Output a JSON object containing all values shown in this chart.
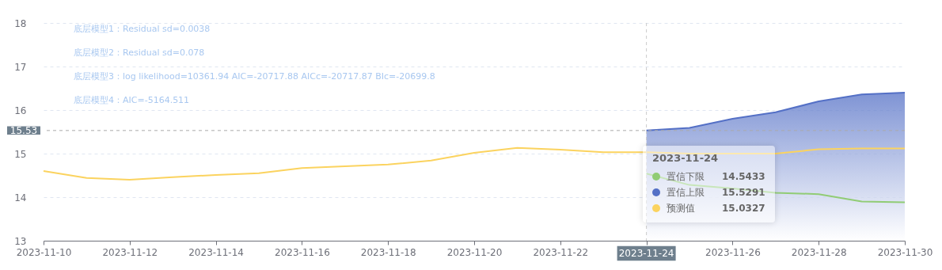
{
  "chart_data": {
    "type": "line",
    "x": [
      "2023-11-10",
      "2023-11-11",
      "2023-11-12",
      "2023-11-13",
      "2023-11-14",
      "2023-11-15",
      "2023-11-16",
      "2023-11-17",
      "2023-11-18",
      "2023-11-19",
      "2023-11-20",
      "2023-11-21",
      "2023-11-22",
      "2023-11-23",
      "2023-11-24",
      "2023-11-25",
      "2023-11-26",
      "2023-11-27",
      "2023-11-28",
      "2023-11-29",
      "2023-11-30"
    ],
    "series": [
      {
        "name": "置信下限",
        "color": "#91cc75",
        "x": [
          "2023-11-24",
          "2023-11-25",
          "2023-11-26",
          "2023-11-27",
          "2023-11-28",
          "2023-11-29",
          "2023-11-30"
        ],
        "values": [
          14.54,
          14.28,
          14.2,
          14.1,
          14.07,
          13.9,
          13.88
        ]
      },
      {
        "name": "置信上限",
        "type": "area",
        "color": "#5470c6",
        "x": [
          "2023-11-24",
          "2023-11-25",
          "2023-11-26",
          "2023-11-27",
          "2023-11-28",
          "2023-11-29",
          "2023-11-30"
        ],
        "values": [
          15.53,
          15.59,
          15.8,
          15.95,
          16.2,
          16.36,
          16.4
        ]
      },
      {
        "name": "预测值",
        "color": "#fbd35f",
        "values": [
          14.6,
          14.44,
          14.4,
          14.46,
          14.51,
          14.55,
          14.67,
          14.71,
          14.75,
          14.84,
          15.02,
          15.13,
          15.09,
          15.03,
          15.03,
          15.0,
          15.0,
          15.0,
          15.1,
          15.12,
          15.12
        ]
      }
    ],
    "xlim": [
      "2023-11-10",
      "2023-11-30"
    ],
    "xticks": [
      "2023-11-10",
      "2023-11-12",
      "2023-11-14",
      "2023-11-16",
      "2023-11-18",
      "2023-11-20",
      "2023-11-22",
      "2023-11-24",
      "2023-11-26",
      "2023-11-28",
      "2023-11-30"
    ],
    "ylim": [
      13,
      18
    ],
    "yticks": [
      13,
      14,
      15,
      16,
      17,
      18
    ],
    "grid": "y",
    "legend": "bottom right",
    "marker": "none",
    "ref_lines": [
      {
        "axis": "y",
        "value": 15.53,
        "label": "15.53",
        "color": "#aaaaaa",
        "line_style": "dashed"
      },
      {
        "axis": "x",
        "value": "2023-11-24",
        "label": "2023-11-24",
        "color": "#cccccc",
        "line_style": "dashed"
      }
    ],
    "annotations": [
      "底层模型1：Residual sd=0.0038",
      "底层模型2：Residual sd=0.078",
      "底层模型3：log likelihood=10361.94 AIC=-20717.88 AICc=-20717.87 BIc=-20699.8",
      "底层模型4：AIC=-5164.511",
      "14.5433",
      "15.5291",
      "15.0327"
    ]
  }
}
